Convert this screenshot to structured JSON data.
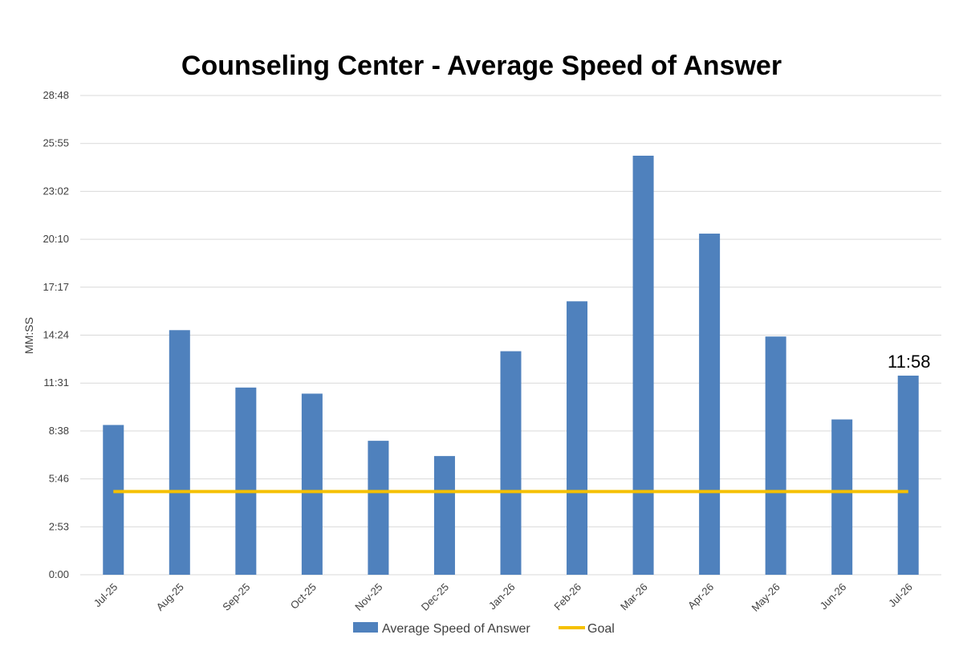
{
  "chart_data": {
    "type": "bar",
    "title": "Counseling Center - Average Speed of Answer",
    "ylabel": "MM:SS",
    "xlabel": "",
    "categories": [
      "Jul-25",
      "Aug-25",
      "Sep-25",
      "Oct-25",
      "Nov-25",
      "Dec-25",
      "Jan-26",
      "Feb-26",
      "Mar-26",
      "Apr-26",
      "May-26",
      "Jun-26",
      "Jul-26"
    ],
    "series": [
      {
        "name": "Average Speed of Answer",
        "type": "bar",
        "color": "#4f81bd",
        "values_seconds": [
          540,
          882,
          675,
          653,
          483,
          428,
          806,
          986,
          1511,
          1230,
          859,
          560,
          718
        ]
      },
      {
        "name": "Goal",
        "type": "line",
        "color": "#f5c000",
        "values_seconds": [
          300,
          300,
          300,
          300,
          300,
          300,
          300,
          300,
          300,
          300,
          300,
          300,
          300
        ]
      }
    ],
    "y_ticks": [
      "0:00",
      "2:53",
      "5:46",
      "8:38",
      "11:31",
      "14:24",
      "17:17",
      "20:10",
      "23:02",
      "25:55",
      "28:48"
    ],
    "ylim_seconds": [
      0,
      1728
    ],
    "data_labels": [
      {
        "category": "Jul-26",
        "text": "11:58"
      }
    ],
    "grid": true,
    "legend": "bottom"
  }
}
